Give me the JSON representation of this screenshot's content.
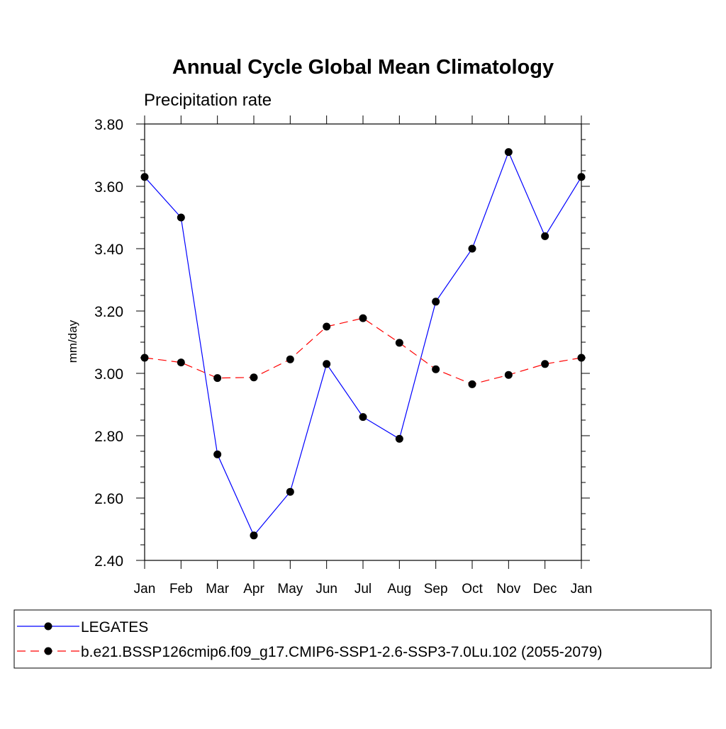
{
  "chart_data": {
    "type": "line",
    "title": "Annual Cycle Global Mean Climatology",
    "subtitle": "Precipitation rate",
    "ylabel": "mm/day",
    "xlabel": "",
    "categories": [
      "Jan",
      "Feb",
      "Mar",
      "Apr",
      "May",
      "Jun",
      "Jul",
      "Aug",
      "Sep",
      "Oct",
      "Nov",
      "Dec",
      "Jan"
    ],
    "ylim": [
      2.4,
      3.8
    ],
    "y_ticks": [
      "2.40",
      "2.60",
      "2.80",
      "3.00",
      "3.20",
      "3.40",
      "3.60",
      "3.80"
    ],
    "grid": false,
    "legend_position": "bottom",
    "series": [
      {
        "name": "LEGATES",
        "color": "#0000ff",
        "dash": "solid",
        "marker": "filled-circle",
        "values": [
          3.63,
          3.5,
          2.74,
          2.48,
          2.62,
          3.03,
          2.86,
          2.79,
          3.23,
          3.4,
          3.71,
          3.44,
          3.63
        ]
      },
      {
        "name": "b.e21.BSSP126cmip6.f09_g17.CMIP6-SSP1-2.6-SSP3-7.0Lu.102 (2055-2079)",
        "color": "#ff0000",
        "dash": "dashed",
        "marker": "filled-circle",
        "values": [
          3.05,
          3.035,
          2.985,
          2.987,
          3.045,
          3.15,
          3.177,
          3.098,
          3.013,
          2.965,
          2.995,
          3.03,
          3.05
        ]
      }
    ]
  }
}
